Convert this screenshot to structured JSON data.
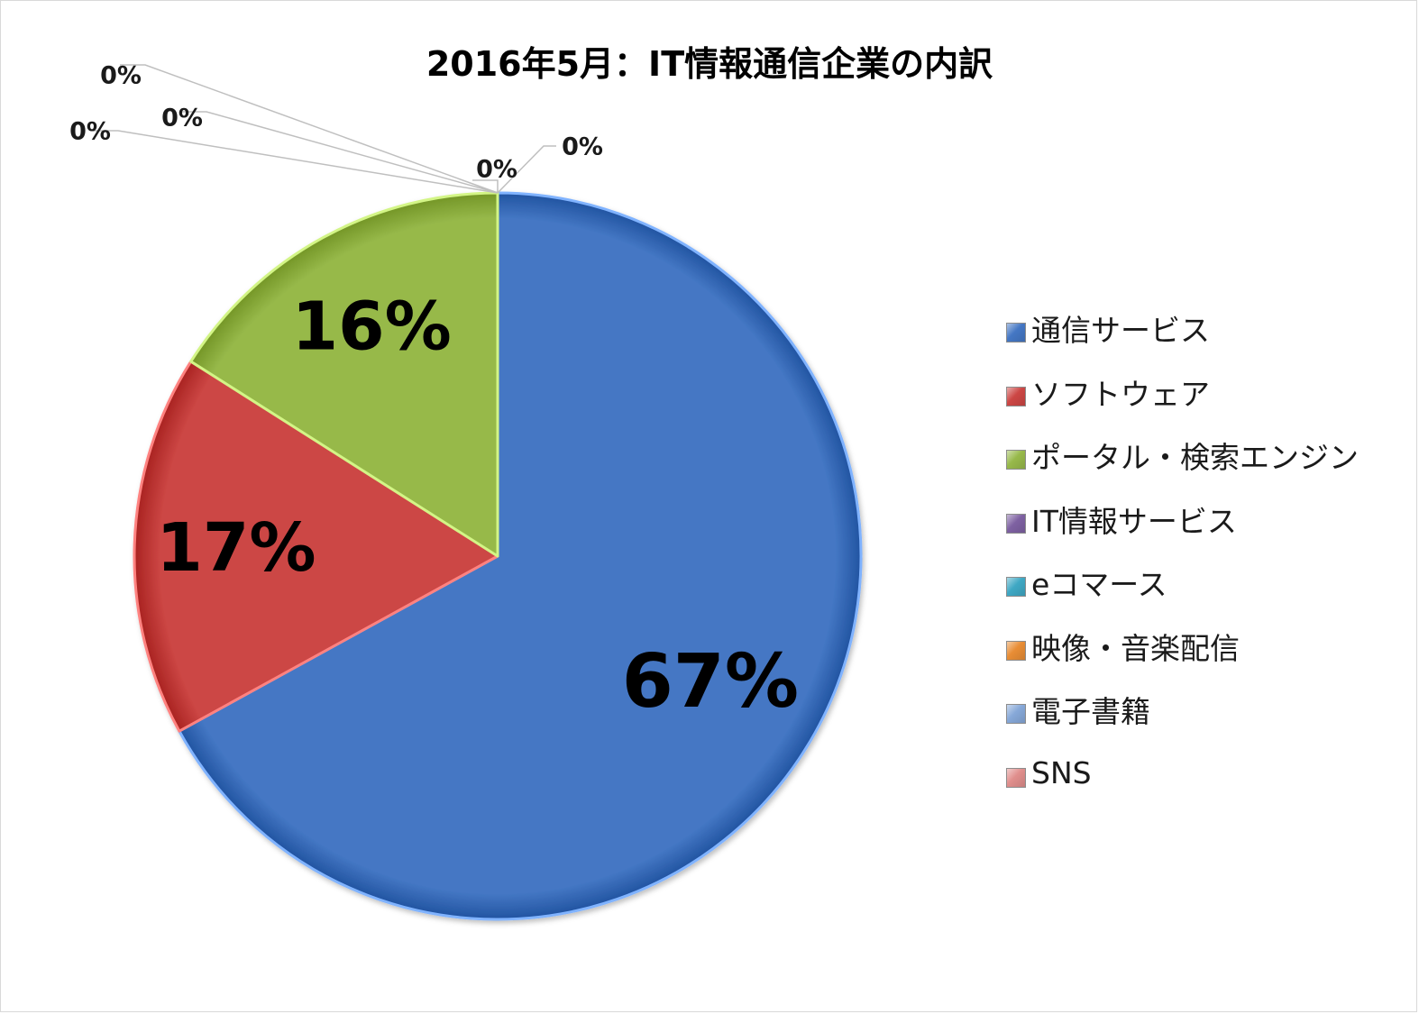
{
  "chart_data": {
    "type": "pie",
    "title": "2016年5月：IT情報通信企業の内訳",
    "categories": [
      "通信サービス",
      "ソフトウェア",
      "ポータル・検索エンジン",
      "IT情報サービス",
      "eコマース",
      "映像・音楽配信",
      "電子書籍",
      "SNS"
    ],
    "values": [
      67,
      17,
      16,
      0,
      0,
      0,
      0,
      0
    ],
    "data_labels": [
      "67%",
      "17%",
      "16%",
      "0%",
      "0%",
      "0%",
      "0%",
      "0%"
    ],
    "colors": [
      "#4477c4",
      "#cc4644",
      "#97b94a",
      "#7e61a2",
      "#3fa8c4",
      "#e88d35",
      "#86a8d8",
      "#e08e8c"
    ],
    "legend_position": "right",
    "start_angle_deg": 0,
    "direction": "clockwise"
  }
}
